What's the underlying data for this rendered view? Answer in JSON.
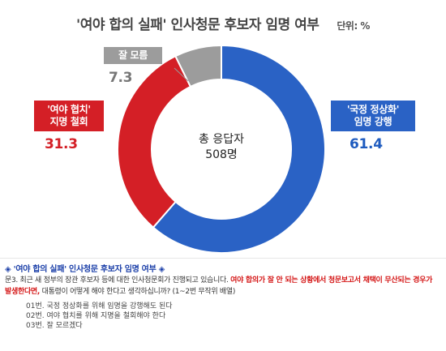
{
  "title": "'여야 합의 실패' 인사청문 후보자 임명 여부",
  "unit": "단위: %",
  "center_label": [
    "총 응답자",
    "508명"
  ],
  "callouts": {
    "appoint": [
      "'국정 정상화'",
      "임명 강행"
    ],
    "withdraw": [
      "'여야 협치'",
      "지명 철회"
    ],
    "unknown": [
      "잘 모름"
    ]
  },
  "chart_data": {
    "type": "pie",
    "donut": true,
    "slices": [
      {
        "label": "'국정 정상화' 임명 강행",
        "value": 61.4,
        "color": "#2a62c5"
      },
      {
        "label": "'여야 협치' 지명 철회",
        "value": 31.3,
        "color": "#d41f26"
      },
      {
        "label": "잘 모름",
        "value": 7.3,
        "color": "#9c9c9c"
      }
    ],
    "value_labels": [
      "61.4",
      "31.3",
      "7.3"
    ],
    "value_colors": [
      "#1e5bbf",
      "#d41f26",
      "#777777"
    ]
  },
  "survey": {
    "title": "◈ '여야 합의 실패' 인사청문 후보자 임명 여부 ◈",
    "question_prefix": "문3. 최근 새 정부의 장관 후보자 등에 대한 인사청문회가 진행되고 있습니다. ",
    "question_red": "여야 합의가 잘 안 되는 상황에서 청문보고서 채택이 무산되는 경우가 발생한다면,",
    "question_suffix": " 대통령이 어떻게 해야 한다고 생각하십니까? (1~2번 무작위 배열)",
    "options": [
      "01번. 국정 정상화를 위해 임명을 강행해도 된다",
      "02번. 여야 협치를 위해 지명을 철회해야 한다",
      "03번. 잘 모르겠다"
    ]
  }
}
